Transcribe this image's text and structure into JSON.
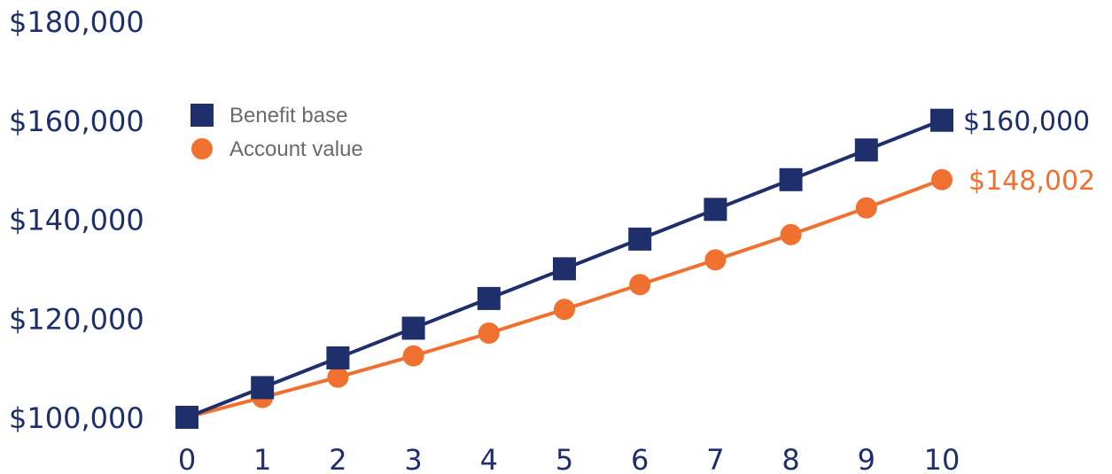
{
  "chart_data": {
    "type": "line",
    "title": "",
    "xlabel": "",
    "ylabel": "",
    "categories": [
      "0",
      "1",
      "2",
      "3",
      "4",
      "5",
      "6",
      "7",
      "8",
      "9",
      "10"
    ],
    "x": [
      0,
      1,
      2,
      3,
      4,
      5,
      6,
      7,
      8,
      9,
      10
    ],
    "ylim": [
      100000,
      180000
    ],
    "y_ticks": [
      100000,
      120000,
      140000,
      160000,
      180000
    ],
    "y_tick_labels": [
      "$100,000",
      "$120,000",
      "$140,000",
      "$160,000",
      "$180,000"
    ],
    "grid": false,
    "legend_position": "top-left",
    "series": [
      {
        "name": "Benefit base",
        "marker": "square",
        "color": "#1f2f6b",
        "values": [
          100000,
          106000,
          112000,
          118000,
          124000,
          130000,
          136000,
          142000,
          148000,
          154000,
          160000
        ],
        "end_label": "$160,000"
      },
      {
        "name": "Account value",
        "marker": "circle",
        "color": "#f07030",
        "values": [
          100000,
          104000,
          108100,
          112400,
          117000,
          121800,
          126800,
          131800,
          136900,
          142300,
          148002
        ],
        "end_label": "$148,002"
      }
    ]
  }
}
